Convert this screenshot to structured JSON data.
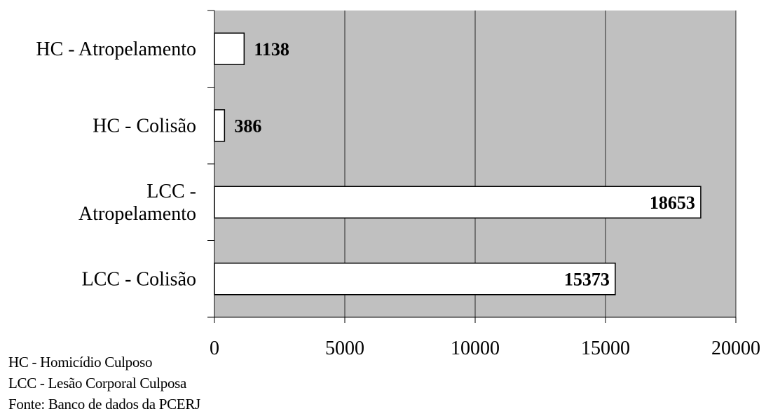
{
  "chart_data": {
    "type": "bar",
    "orientation": "horizontal",
    "categories": [
      [
        "HC - Atropelamento"
      ],
      [
        "HC - Colisão"
      ],
      [
        "LCC -",
        "Atropelamento"
      ],
      [
        "LCC - Colisão"
      ]
    ],
    "values": [
      1138,
      386,
      18653,
      15373
    ],
    "data_labels": [
      "1138",
      "386",
      "18653",
      "15373"
    ],
    "xlim": [
      0,
      20000
    ],
    "x_ticks": [
      "0",
      "5000",
      "10000",
      "15000",
      "20000"
    ],
    "grid": true,
    "plot_background": "#c0c0c0",
    "bar_fill": "#ffffff",
    "bar_stroke": "#000000",
    "legend": "none",
    "title": "",
    "xlabel": "",
    "ylabel": ""
  },
  "notes": {
    "line1": "HC - Homicídio Culposo",
    "line2": "LCC - Lesão Corporal Culposa",
    "source": "Fonte: Banco de dados da PCERJ"
  }
}
